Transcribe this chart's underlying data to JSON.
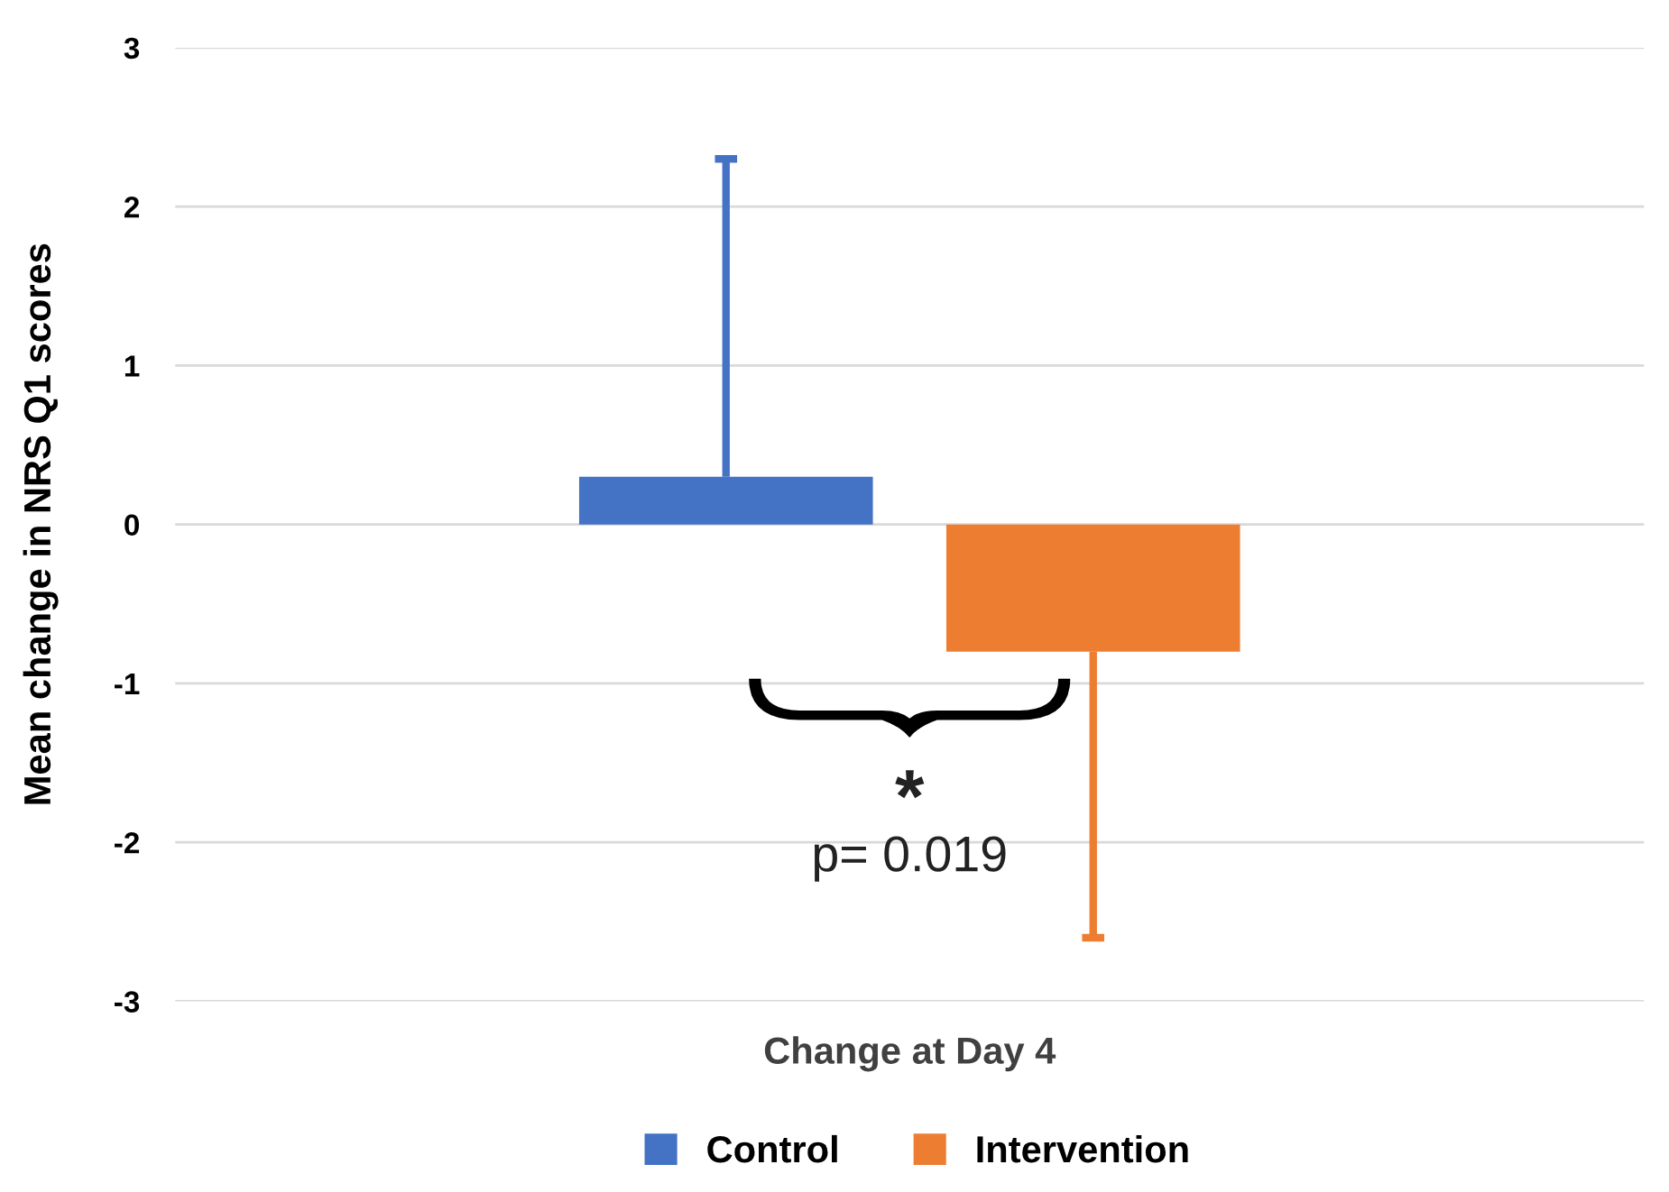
{
  "chart_data": {
    "type": "bar",
    "ylabel": "Mean change in NRS Q1 scores",
    "categories": [
      "Change at Day 4"
    ],
    "series": [
      {
        "name": "Control",
        "color": "#4472c4",
        "values": [
          0.3
        ],
        "errors": [
          [
            0.3,
            2.3
          ]
        ]
      },
      {
        "name": "Intervention",
        "color": "#ed7d31",
        "values": [
          -0.8
        ],
        "errors": [
          [
            -2.6,
            -0.8
          ]
        ]
      }
    ],
    "ylim": [
      -3,
      3
    ],
    "yticks": [
      -3,
      -2,
      -1,
      0,
      1,
      2,
      3
    ],
    "grid": "y",
    "legend": "bottom",
    "annotations": [
      "*",
      "p= 0.019"
    ]
  }
}
